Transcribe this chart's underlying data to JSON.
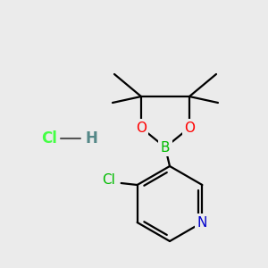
{
  "background_color": "#ebebeb",
  "bond_color": "#000000",
  "bond_width": 1.6,
  "atom_colors": {
    "B": "#00bb00",
    "O": "#ff0000",
    "N": "#0000cc",
    "Cl_ring": "#00bb00",
    "Cl_hcl": "#44ff44",
    "H_hcl": "#558888",
    "C": "#000000"
  },
  "font_size_atoms": 11,
  "font_size_methyl": 9.5
}
